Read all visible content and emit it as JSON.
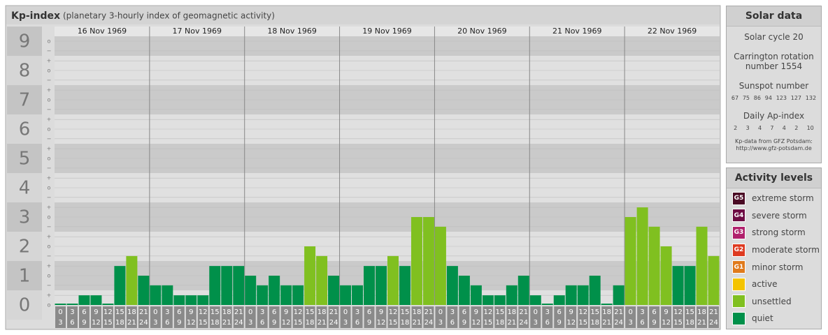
{
  "chart_data": {
    "type": "bar",
    "title": "Kp-index",
    "subtitle": "(planetary 3-hourly index of geomagnetic activity)",
    "days": [
      "16 Nov 1969",
      "17 Nov 1969",
      "18 Nov 1969",
      "19 Nov 1969",
      "20 Nov 1969",
      "21 Nov 1969",
      "22 Nov 1969"
    ],
    "hour_bounds": [
      0,
      3,
      6,
      9,
      12,
      15,
      18,
      21,
      24
    ],
    "values": [
      0,
      0,
      0.33,
      0.33,
      0,
      1.33,
      1.67,
      1,
      0.67,
      0.67,
      0.33,
      0.33,
      0.33,
      1.33,
      1.33,
      1.33,
      1,
      0.67,
      1,
      0.67,
      0.67,
      2,
      1.67,
      1,
      0.67,
      0.67,
      1.33,
      1.33,
      1.67,
      1.33,
      3,
      3,
      2.67,
      1.33,
      1,
      0.67,
      0.33,
      0.33,
      0.67,
      1,
      0.33,
      0,
      0.33,
      0.67,
      0.67,
      1,
      0,
      0.67,
      3,
      3.33,
      2.67,
      2,
      1.33,
      1.33,
      2.67,
      1.67
    ],
    "colors": [
      "#00904a",
      "#00904a",
      "#00904a",
      "#00904a",
      "#00904a",
      "#00904a",
      "#80c020",
      "#00904a",
      "#00904a",
      "#00904a",
      "#00904a",
      "#00904a",
      "#00904a",
      "#00904a",
      "#00904a",
      "#00904a",
      "#00904a",
      "#00904a",
      "#00904a",
      "#00904a",
      "#00904a",
      "#80c020",
      "#80c020",
      "#00904a",
      "#00904a",
      "#00904a",
      "#00904a",
      "#00904a",
      "#80c020",
      "#00904a",
      "#80c020",
      "#80c020",
      "#80c020",
      "#00904a",
      "#00904a",
      "#00904a",
      "#00904a",
      "#00904a",
      "#00904a",
      "#00904a",
      "#00904a",
      "#00904a",
      "#00904a",
      "#00904a",
      "#00904a",
      "#00904a",
      "#00904a",
      "#00904a",
      "#80c020",
      "#80c020",
      "#80c020",
      "#80c020",
      "#00904a",
      "#00904a",
      "#80c020",
      "#80c020"
    ],
    "ylim": [
      -0.5,
      9.5
    ],
    "yticks": [
      0,
      1,
      2,
      3,
      4,
      5,
      6,
      7,
      8,
      9
    ],
    "yticks_minor": [
      {
        "value": 0,
        "label": "o"
      },
      {
        "value": 0.33,
        "label": "+"
      },
      {
        "value": 0.67,
        "label": "−"
      },
      {
        "value": 1,
        "label": "o"
      },
      {
        "value": 1.33,
        "label": "+"
      },
      {
        "value": 1.67,
        "label": "−"
      },
      {
        "value": 2,
        "label": "o"
      },
      {
        "value": 2.33,
        "label": "+"
      },
      {
        "value": 2.67,
        "label": "−"
      },
      {
        "value": 3,
        "label": "o"
      },
      {
        "value": 3.33,
        "label": "+"
      },
      {
        "value": 3.67,
        "label": "−"
      },
      {
        "value": 4,
        "label": "o"
      },
      {
        "value": 4.33,
        "label": "+"
      },
      {
        "value": 4.67,
        "label": "−"
      },
      {
        "value": 5,
        "label": "o"
      },
      {
        "value": 5.33,
        "label": "+"
      },
      {
        "value": 5.67,
        "label": "−"
      },
      {
        "value": 6,
        "label": "o"
      },
      {
        "value": 6.33,
        "label": "+"
      },
      {
        "value": 6.67,
        "label": "−"
      },
      {
        "value": 7,
        "label": "o"
      },
      {
        "value": 7.33,
        "label": "+"
      },
      {
        "value": 7.67,
        "label": "−"
      },
      {
        "value": 8,
        "label": "o"
      },
      {
        "value": 8.33,
        "label": "+"
      },
      {
        "value": 8.67,
        "label": "−"
      },
      {
        "value": 9,
        "label": "o"
      }
    ],
    "grid": true
  },
  "solar_data": {
    "title": "Solar data",
    "cycle": "Solar cycle 20",
    "carrington": "Carrington rotation number 1554",
    "sunspot_label": "Sunspot number",
    "sunspot": [
      67,
      75,
      86,
      94,
      123,
      127,
      132
    ],
    "ap_label": "Daily Ap-index",
    "ap": [
      2,
      3,
      4,
      7,
      4,
      2,
      10
    ],
    "source": "Kp-data from GFZ Potsdam:",
    "source_url": "http://www.gfz-potsdam.de"
  },
  "activity_levels": {
    "title": "Activity levels",
    "items": [
      {
        "badge": "G5",
        "label": "extreme storm",
        "color": "#4a0a24"
      },
      {
        "badge": "G4",
        "label": "severe storm",
        "color": "#6e0c44"
      },
      {
        "badge": "G3",
        "label": "strong storm",
        "color": "#b0206c"
      },
      {
        "badge": "G2",
        "label": "moderate storm",
        "color": "#de3a20"
      },
      {
        "badge": "G1",
        "label": "minor storm",
        "color": "#e07a1c"
      },
      {
        "badge": "",
        "label": "active",
        "color": "#f4c400"
      },
      {
        "badge": "",
        "label": "unsettled",
        "color": "#80c020"
      },
      {
        "badge": "",
        "label": "quiet",
        "color": "#00904a"
      }
    ]
  }
}
